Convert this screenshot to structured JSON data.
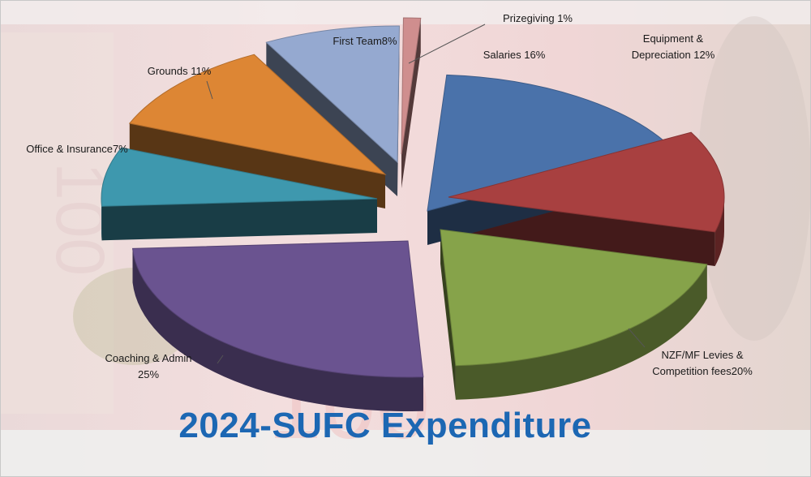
{
  "title": "2024-SUFC Expenditure",
  "chart_data": {
    "type": "pie",
    "title": "2024-SUFC Expenditure",
    "slices": [
      {
        "label": "Salaries 16%",
        "value": 16,
        "color": "#4a72aa"
      },
      {
        "label": "Equipment & Depreciation 12%",
        "value": 12,
        "color": "#a84040"
      },
      {
        "label": "NZF/MF Levies & Competition fees20%",
        "value": 20,
        "color": "#86a34a"
      },
      {
        "label": "Coaching & Admin 25%",
        "value": 25,
        "color": "#6a5390"
      },
      {
        "label": "Office & Insurance7%",
        "value": 7,
        "color": "#3e98ae"
      },
      {
        "label": "Grounds 11%",
        "value": 11,
        "color": "#dd8634"
      },
      {
        "label": "First Team8%",
        "value": 8,
        "color": "#95a9d0"
      },
      {
        "label": "Prizegiving 1%",
        "value": 1,
        "color": "#cf8e8e"
      }
    ]
  }
}
